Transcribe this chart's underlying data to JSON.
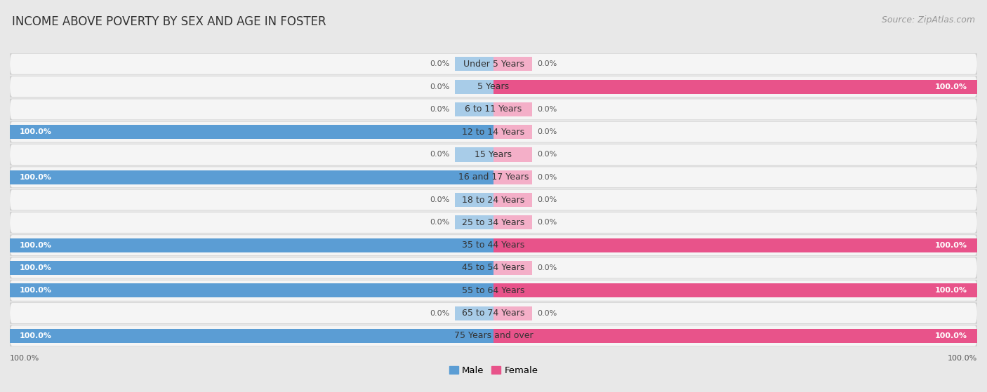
{
  "title": "INCOME ABOVE POVERTY BY SEX AND AGE IN FOSTER",
  "source": "Source: ZipAtlas.com",
  "categories": [
    "Under 5 Years",
    "5 Years",
    "6 to 11 Years",
    "12 to 14 Years",
    "15 Years",
    "16 and 17 Years",
    "18 to 24 Years",
    "25 to 34 Years",
    "35 to 44 Years",
    "45 to 54 Years",
    "55 to 64 Years",
    "65 to 74 Years",
    "75 Years and over"
  ],
  "male_values": [
    0.0,
    0.0,
    0.0,
    100.0,
    0.0,
    100.0,
    0.0,
    0.0,
    100.0,
    100.0,
    100.0,
    0.0,
    100.0
  ],
  "female_values": [
    0.0,
    100.0,
    0.0,
    0.0,
    0.0,
    0.0,
    0.0,
    0.0,
    100.0,
    0.0,
    100.0,
    0.0,
    100.0
  ],
  "male_color_full": "#5b9dd4",
  "male_color_stub": "#a8cce8",
  "female_color_full": "#e8538a",
  "female_color_stub": "#f4afc8",
  "bg_color": "#e8e8e8",
  "row_bg_color": "#f5f5f5",
  "row_shadow_color": "#d0d0d0",
  "bar_height": 0.62,
  "xlim_left": -100,
  "xlim_right": 100,
  "stub_size": 8.0,
  "title_fontsize": 12,
  "source_fontsize": 9,
  "label_fontsize": 9,
  "value_fontsize": 8
}
